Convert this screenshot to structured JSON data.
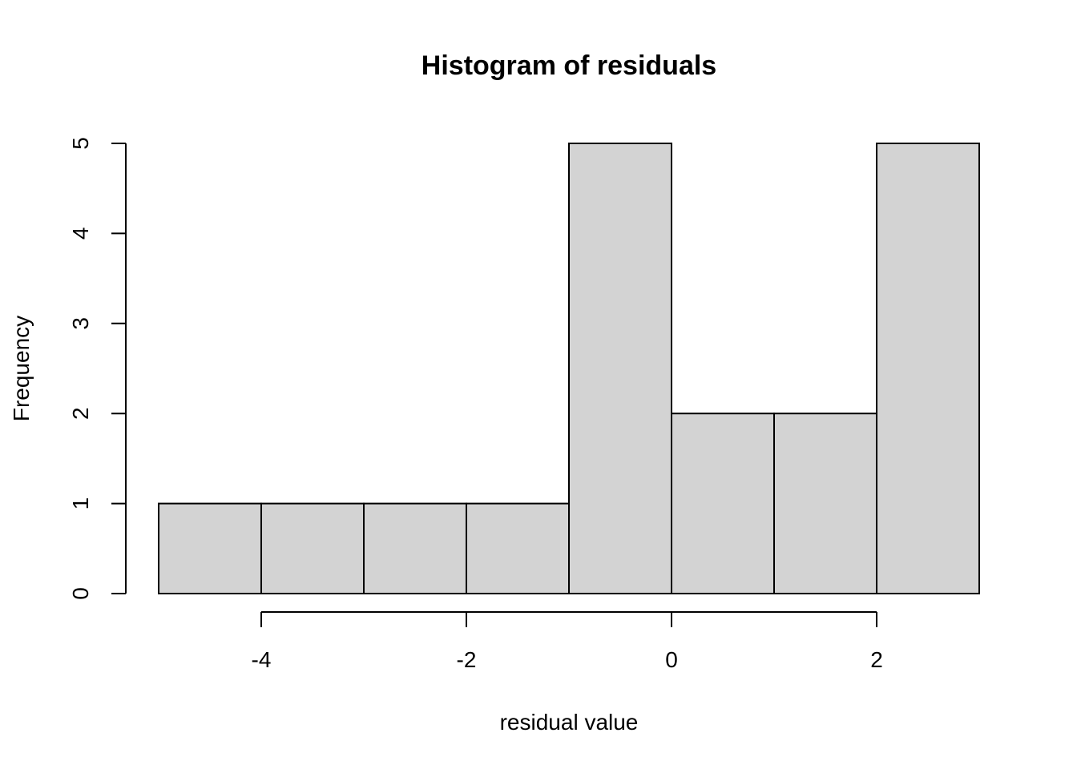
{
  "chart_data": {
    "type": "bar",
    "title": "Histogram of residuals",
    "xlabel": "residual value",
    "ylabel": "Frequency",
    "bins": [
      {
        "start": -5,
        "end": -4,
        "count": 1
      },
      {
        "start": -4,
        "end": -3,
        "count": 1
      },
      {
        "start": -3,
        "end": -2,
        "count": 1
      },
      {
        "start": -2,
        "end": -1,
        "count": 1
      },
      {
        "start": -1,
        "end": 0,
        "count": 5
      },
      {
        "start": 0,
        "end": 1,
        "count": 2
      },
      {
        "start": 1,
        "end": 2,
        "count": 2
      },
      {
        "start": 2,
        "end": 3,
        "count": 5
      }
    ],
    "xlim": [
      -5,
      3
    ],
    "ylim": [
      0,
      5
    ],
    "x_ticks": [
      -4,
      -2,
      0,
      2
    ],
    "x_tick_labels": [
      "-4",
      "-2",
      "0",
      "2"
    ],
    "y_ticks": [
      0,
      1,
      2,
      3,
      4,
      5
    ],
    "y_tick_labels": [
      "0",
      "1",
      "2",
      "3",
      "4",
      "5"
    ],
    "bar_color": "#d3d3d3",
    "grid": false
  }
}
